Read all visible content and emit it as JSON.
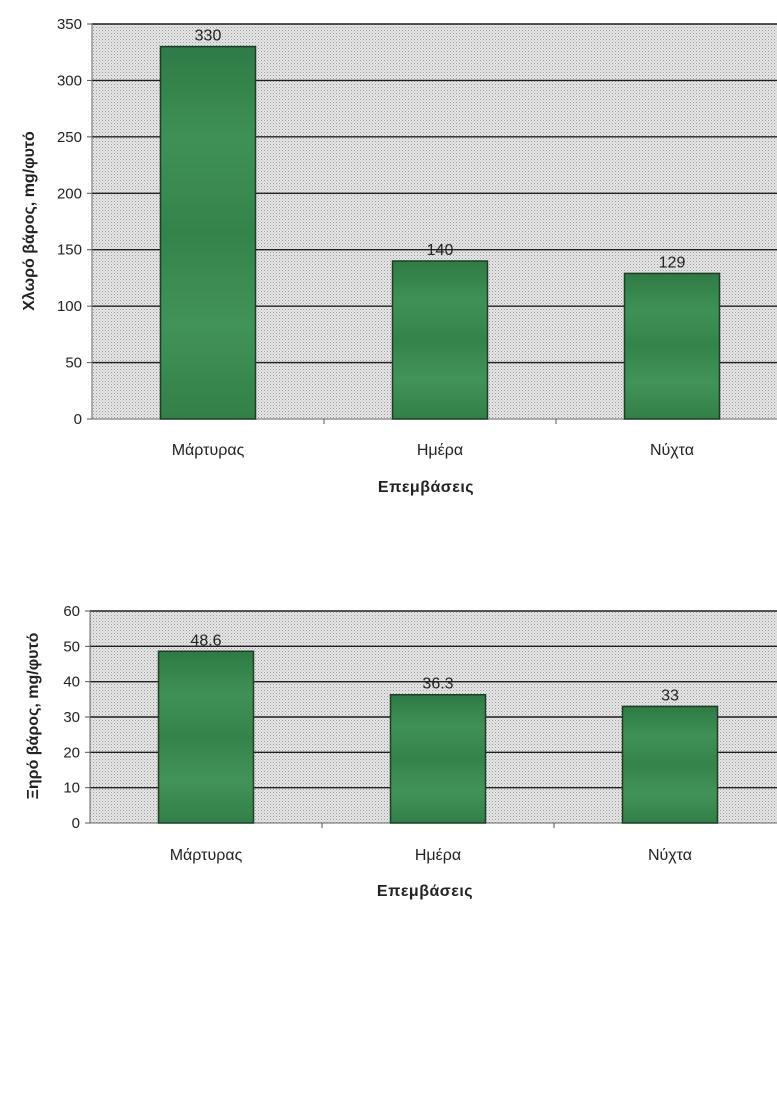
{
  "chart_data": [
    {
      "type": "bar",
      "categories": [
        "Μάρτυρας",
        "Ημέρα",
        "Νύχτα"
      ],
      "values": [
        330,
        140,
        129
      ],
      "data_labels": [
        "330",
        "140",
        "129"
      ],
      "xlabel": "Επεμβάσεις",
      "ylabel": "Χλωρό βάρος, mg/φυτό",
      "ylim": [
        0,
        350
      ],
      "yticks": [
        0,
        50,
        100,
        150,
        200,
        250,
        300,
        350
      ],
      "grid": true,
      "bar_color": "#3e8e55",
      "plot_background": "#cfcfcf"
    },
    {
      "type": "bar",
      "categories": [
        "Μάρτυρας",
        "Ημέρα",
        "Νύχτα"
      ],
      "values": [
        48.6,
        36.3,
        33
      ],
      "data_labels": [
        "48.6",
        "36.3",
        "33"
      ],
      "xlabel": "Επεμβάσεις",
      "ylabel": "Ξηρό βάρος, mg/φυτό",
      "ylim": [
        0,
        60
      ],
      "yticks": [
        0,
        10,
        20,
        30,
        40,
        50,
        60
      ],
      "grid": true,
      "bar_color": "#3e8e55",
      "plot_background": "#cfcfcf"
    }
  ]
}
